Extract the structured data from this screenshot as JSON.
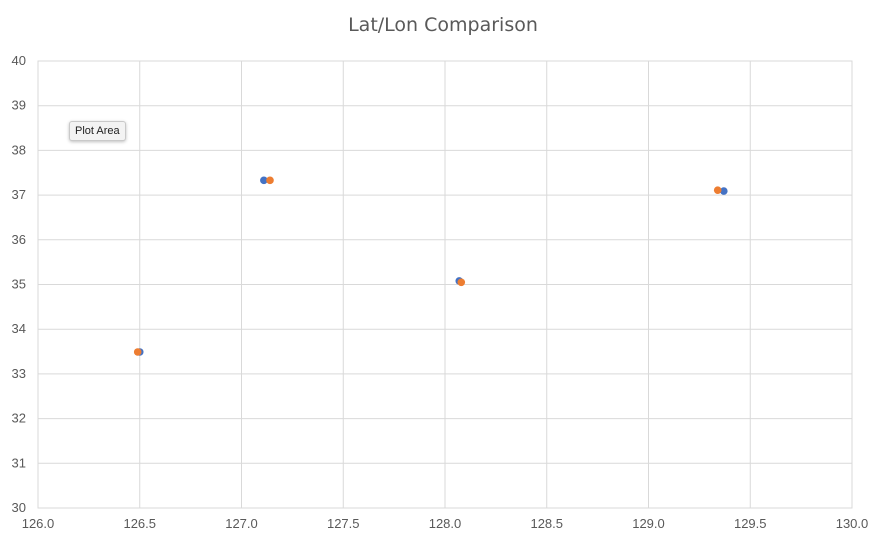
{
  "chart_data": {
    "type": "scatter",
    "title": "Lat/Lon Comparison",
    "xlabel": "",
    "ylabel": "",
    "xlim": [
      126.0,
      130.0
    ],
    "ylim": [
      30,
      40
    ],
    "x_ticks": [
      126.0,
      126.5,
      127.0,
      127.5,
      128.0,
      128.5,
      129.0,
      129.5,
      130.0
    ],
    "x_tick_labels": [
      "126.0",
      "126.5",
      "127.0",
      "127.5",
      "128.0",
      "128.5",
      "129.0",
      "129.5",
      "130.0"
    ],
    "y_ticks": [
      30,
      31,
      32,
      33,
      34,
      35,
      36,
      37,
      38,
      39,
      40
    ],
    "y_tick_labels": [
      "30",
      "31",
      "32",
      "33",
      "34",
      "35",
      "36",
      "37",
      "38",
      "39",
      "40"
    ],
    "grid": true,
    "legend": "none",
    "series": [
      {
        "color": "#4472C4",
        "points": [
          {
            "x": 126.5,
            "y": 33.49
          },
          {
            "x": 127.11,
            "y": 37.33
          },
          {
            "x": 128.07,
            "y": 35.08
          },
          {
            "x": 129.37,
            "y": 37.09
          }
        ]
      },
      {
        "color": "#ED7D31",
        "points": [
          {
            "x": 126.49,
            "y": 33.49
          },
          {
            "x": 127.14,
            "y": 37.33
          },
          {
            "x": 128.08,
            "y": 35.05
          },
          {
            "x": 129.34,
            "y": 37.11
          }
        ]
      }
    ]
  },
  "tooltip": {
    "text": "Plot Area"
  }
}
